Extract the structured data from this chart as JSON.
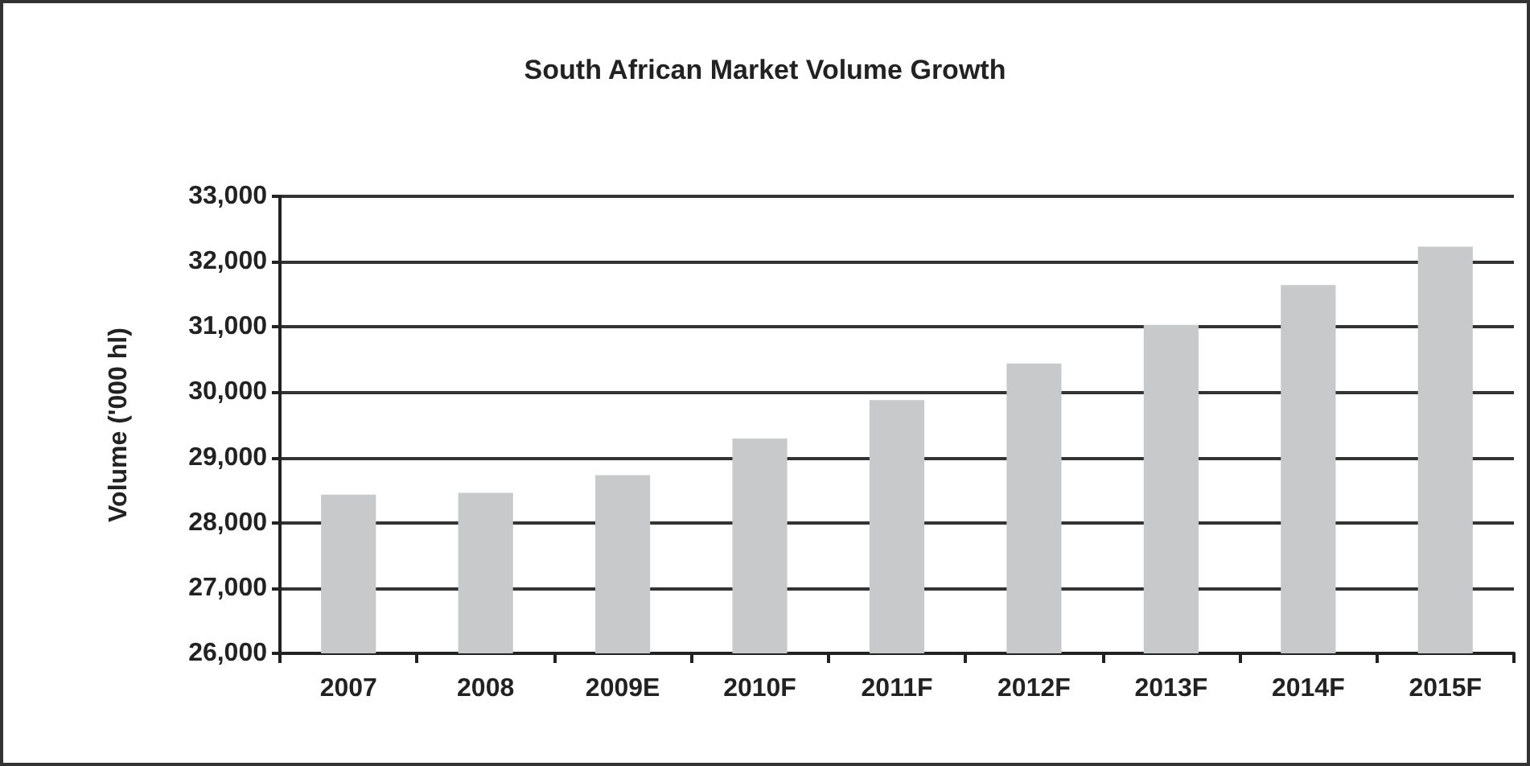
{
  "chart_data": {
    "type": "bar",
    "title": "South African Market Volume Growth",
    "ylabel": "Volume ('000 hl)",
    "categories": [
      "2007",
      "2008",
      "2009E",
      "2010F",
      "2011F",
      "2012F",
      "2013F",
      "2014F",
      "2015F"
    ],
    "values": [
      28430,
      28460,
      28730,
      29290,
      29880,
      30440,
      31030,
      31640,
      32230
    ],
    "color": "#c8c9cb",
    "ylim": [
      26000,
      33000
    ],
    "yticks": [
      {
        "value": 26000,
        "label": "26,000"
      },
      {
        "value": 27000,
        "label": "27,000"
      },
      {
        "value": 28000,
        "label": "28,000"
      },
      {
        "value": 29000,
        "label": "29,000"
      },
      {
        "value": 30000,
        "label": "30,000"
      },
      {
        "value": 31000,
        "label": "31,000"
      },
      {
        "value": 32000,
        "label": "32,000"
      },
      {
        "value": 33000,
        "label": "33,000"
      }
    ],
    "grid": "y"
  }
}
